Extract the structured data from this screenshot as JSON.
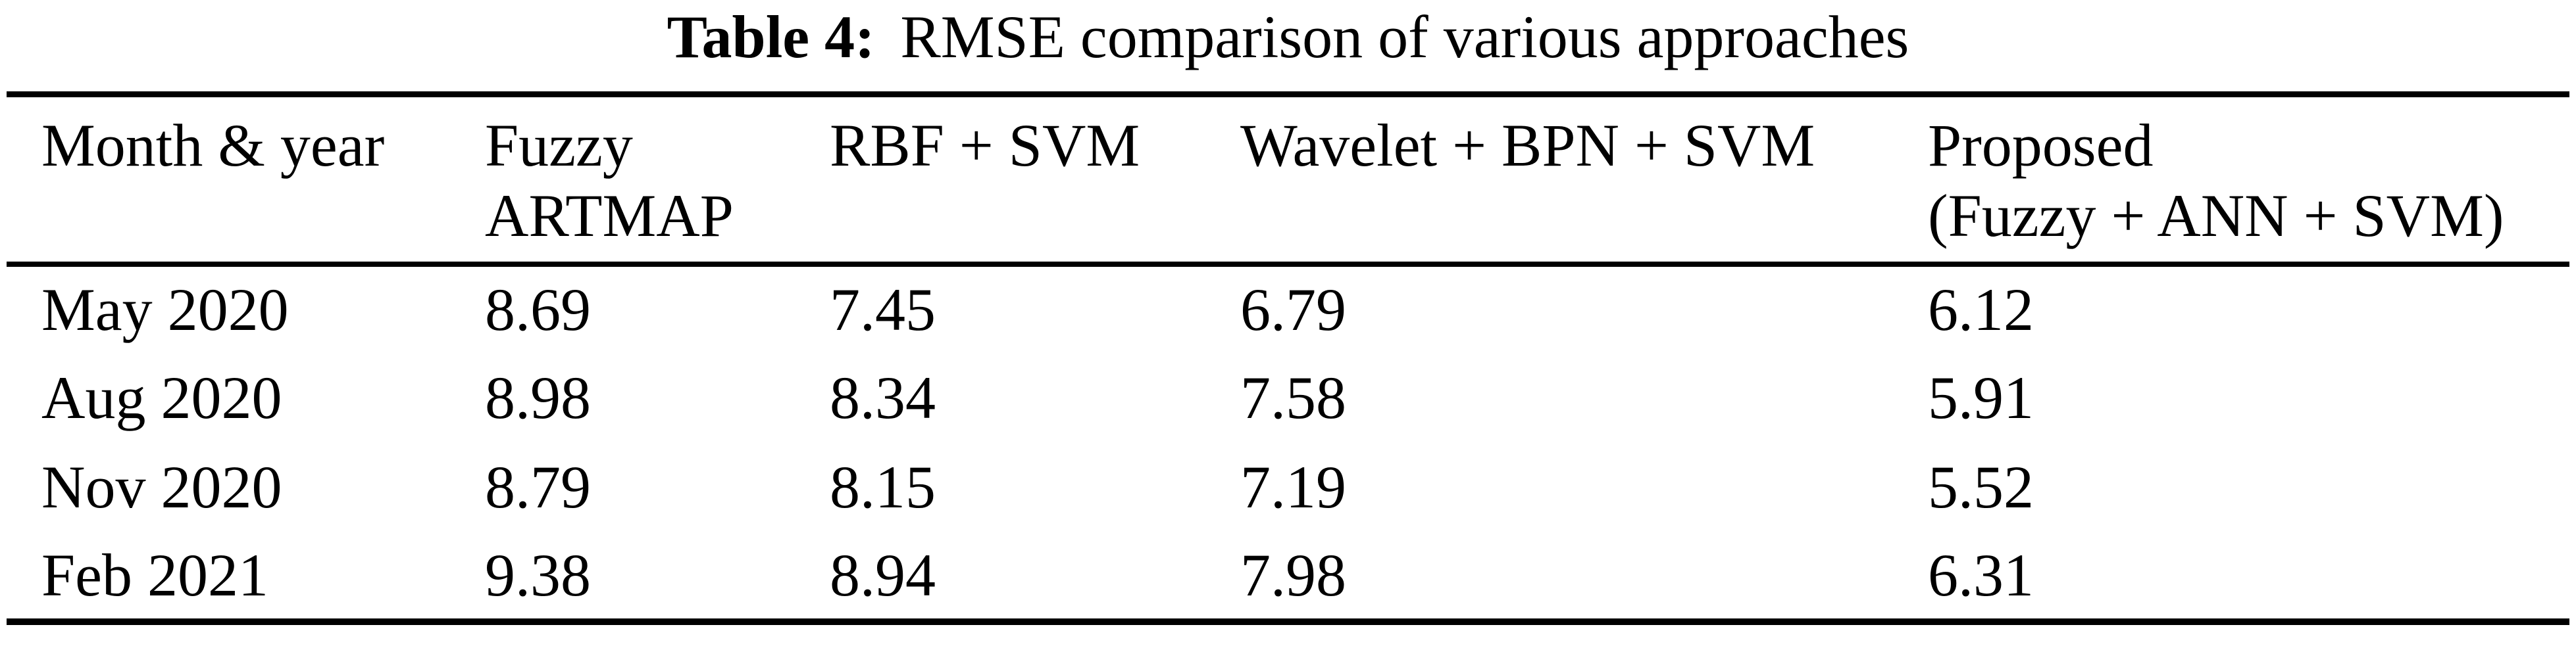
{
  "caption": {
    "label": "Table 4:",
    "text": "RMSE comparison of various approaches"
  },
  "colors": {
    "background": "#ffffff",
    "text": "#000000",
    "rule": "#000000"
  },
  "table": {
    "header": {
      "cells": [
        {
          "line1": "Month & year",
          "line2": ""
        },
        {
          "line1": "Fuzzy",
          "line2": "ARTMAP"
        },
        {
          "line1": "RBF + SVM",
          "line2": ""
        },
        {
          "line1": "Wavelet + BPN + SVM",
          "line2": ""
        },
        {
          "line1": "Proposed",
          "line2": "(Fuzzy + ANN + SVM)"
        }
      ]
    },
    "rows": [
      {
        "c0": "May 2020",
        "c1": "8.69",
        "c2": "7.45",
        "c3": "6.79",
        "c4": "6.12"
      },
      {
        "c0": "Aug 2020",
        "c1": "8.98",
        "c2": "8.34",
        "c3": "7.58",
        "c4": "5.91"
      },
      {
        "c0": "Nov 2020",
        "c1": "8.79",
        "c2": "8.15",
        "c3": "7.19",
        "c4": "5.52"
      },
      {
        "c0": "Feb 2021",
        "c1": "9.38",
        "c2": "8.94",
        "c3": "7.98",
        "c4": "6.31"
      }
    ]
  },
  "chart_data": {
    "type": "table",
    "title": "Table 4: RMSE comparison of various approaches",
    "categories": [
      "May 2020",
      "Aug 2020",
      "Nov 2020",
      "Feb 2021"
    ],
    "series": [
      {
        "name": "Fuzzy ARTMAP",
        "values": [
          8.69,
          8.98,
          8.79,
          9.38
        ]
      },
      {
        "name": "RBF + SVM",
        "values": [
          7.45,
          8.34,
          8.15,
          8.94
        ]
      },
      {
        "name": "Wavelet + BPN + SVM",
        "values": [
          6.79,
          7.58,
          7.19,
          7.98
        ]
      },
      {
        "name": "Proposed (Fuzzy + ANN + SVM)",
        "values": [
          6.12,
          5.91,
          5.52,
          6.31
        ]
      }
    ]
  }
}
